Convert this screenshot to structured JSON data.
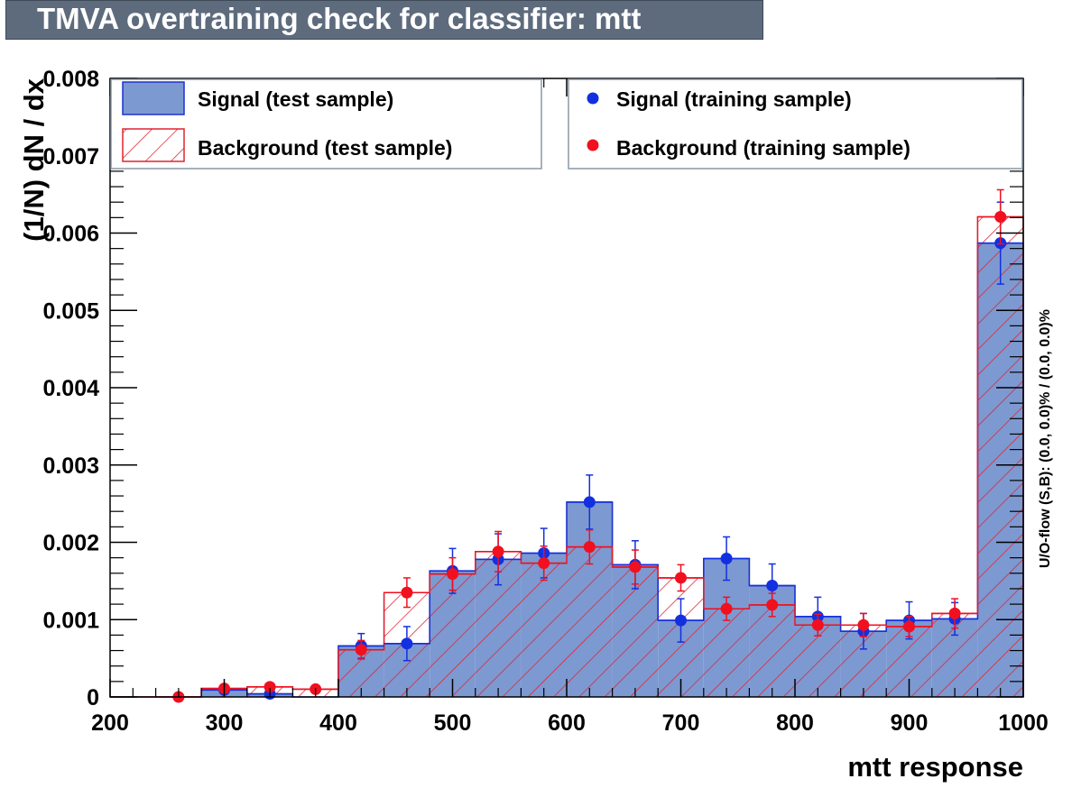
{
  "title": "TMVA overtraining check for classifier: mtt",
  "colors": {
    "signal_fill": "#7d99d1",
    "signal_line": "#1c31cf",
    "signal_marker": "#1230e0",
    "background_line": "#e0222e",
    "background_marker": "#f01020",
    "title_bg": "#5d6b7d"
  },
  "chart_data": {
    "type": "bar",
    "title": "TMVA overtraining check for classifier: mtt",
    "xlabel": "mtt response",
    "ylabel": "(1/N) dN / dx",
    "xlim": [
      200,
      1000
    ],
    "ylim": [
      0,
      0.008
    ],
    "x_ticks": [
      "200",
      "300",
      "400",
      "500",
      "600",
      "700",
      "800",
      "900",
      "1000"
    ],
    "y_ticks": [
      "0",
      "0.001",
      "0.002",
      "0.003",
      "0.004",
      "0.005",
      "0.006",
      "0.007",
      "0.008"
    ],
    "bin_edges": [
      200,
      240,
      280,
      320,
      360,
      400,
      440,
      480,
      520,
      560,
      600,
      640,
      680,
      720,
      760,
      800,
      840,
      880,
      920,
      960,
      1000
    ],
    "bin_centers": [
      220,
      260,
      300,
      340,
      380,
      420,
      460,
      500,
      540,
      580,
      620,
      660,
      700,
      740,
      780,
      820,
      860,
      900,
      940,
      980
    ],
    "legend_placement": "top",
    "overflow_text": "U/O-flow (S,B): (0.0, 0.0)% / (0.0, 0.0)%",
    "series": [
      {
        "name": "Signal (test sample)",
        "style": "filled histogram",
        "values": [
          0,
          0,
          9e-05,
          4e-05,
          0,
          0.00066,
          0.00069,
          0.00163,
          0.00178,
          0.00186,
          0.00252,
          0.00171,
          0.00099,
          0.00179,
          0.00144,
          0.00104,
          0.00085,
          0.00099,
          0.00101,
          0.00587
        ]
      },
      {
        "name": "Background (test sample)",
        "style": "hatched histogram",
        "values": [
          0,
          0,
          0.00011,
          0.00013,
          0.0001,
          0.00061,
          0.00135,
          0.00159,
          0.00188,
          0.00173,
          0.00194,
          0.00168,
          0.00154,
          0.00114,
          0.00119,
          0.00093,
          0.00093,
          0.00091,
          0.00108,
          0.00621
        ]
      },
      {
        "name": "Signal (training sample)",
        "style": "markers",
        "points": [
          {
            "x": 300,
            "y": 9e-05,
            "err": 2e-05
          },
          {
            "x": 340,
            "y": 4e-05,
            "err": 1e-05
          },
          {
            "x": 420,
            "y": 0.00066,
            "err": 0.00016
          },
          {
            "x": 460,
            "y": 0.00069,
            "err": 0.00022
          },
          {
            "x": 500,
            "y": 0.00163,
            "err": 0.00029
          },
          {
            "x": 540,
            "y": 0.00178,
            "err": 0.00033
          },
          {
            "x": 580,
            "y": 0.00186,
            "err": 0.00032
          },
          {
            "x": 620,
            "y": 0.00252,
            "err": 0.00035
          },
          {
            "x": 660,
            "y": 0.00171,
            "err": 0.00031
          },
          {
            "x": 700,
            "y": 0.00099,
            "err": 0.00028
          },
          {
            "x": 740,
            "y": 0.00179,
            "err": 0.00028
          },
          {
            "x": 780,
            "y": 0.00144,
            "err": 0.00028
          },
          {
            "x": 820,
            "y": 0.00104,
            "err": 0.00025
          },
          {
            "x": 860,
            "y": 0.00085,
            "err": 0.00023
          },
          {
            "x": 900,
            "y": 0.00099,
            "err": 0.00024
          },
          {
            "x": 940,
            "y": 0.00101,
            "err": 0.00021
          },
          {
            "x": 980,
            "y": 0.00587,
            "err": 0.00053
          }
        ]
      },
      {
        "name": "Background (training sample)",
        "style": "markers",
        "points": [
          {
            "x": 260,
            "y": 0.0,
            "err": 1e-05
          },
          {
            "x": 300,
            "y": 0.00011,
            "err": 3e-05
          },
          {
            "x": 340,
            "y": 0.00013,
            "err": 3e-05
          },
          {
            "x": 380,
            "y": 0.0001,
            "err": 3e-05
          },
          {
            "x": 420,
            "y": 0.00061,
            "err": 0.00012
          },
          {
            "x": 460,
            "y": 0.00135,
            "err": 0.00019
          },
          {
            "x": 500,
            "y": 0.00159,
            "err": 0.00021
          },
          {
            "x": 540,
            "y": 0.00188,
            "err": 0.00026
          },
          {
            "x": 580,
            "y": 0.00173,
            "err": 0.00022
          },
          {
            "x": 620,
            "y": 0.00194,
            "err": 0.00022
          },
          {
            "x": 660,
            "y": 0.00168,
            "err": 0.00022
          },
          {
            "x": 700,
            "y": 0.00154,
            "err": 0.00017
          },
          {
            "x": 740,
            "y": 0.00114,
            "err": 0.00015
          },
          {
            "x": 780,
            "y": 0.00119,
            "err": 0.00015
          },
          {
            "x": 820,
            "y": 0.00093,
            "err": 0.00014
          },
          {
            "x": 860,
            "y": 0.00093,
            "err": 0.00015
          },
          {
            "x": 900,
            "y": 0.00091,
            "err": 0.00013
          },
          {
            "x": 940,
            "y": 0.00108,
            "err": 0.00019
          },
          {
            "x": 980,
            "y": 0.00621,
            "err": 0.00035
          }
        ]
      }
    ]
  }
}
